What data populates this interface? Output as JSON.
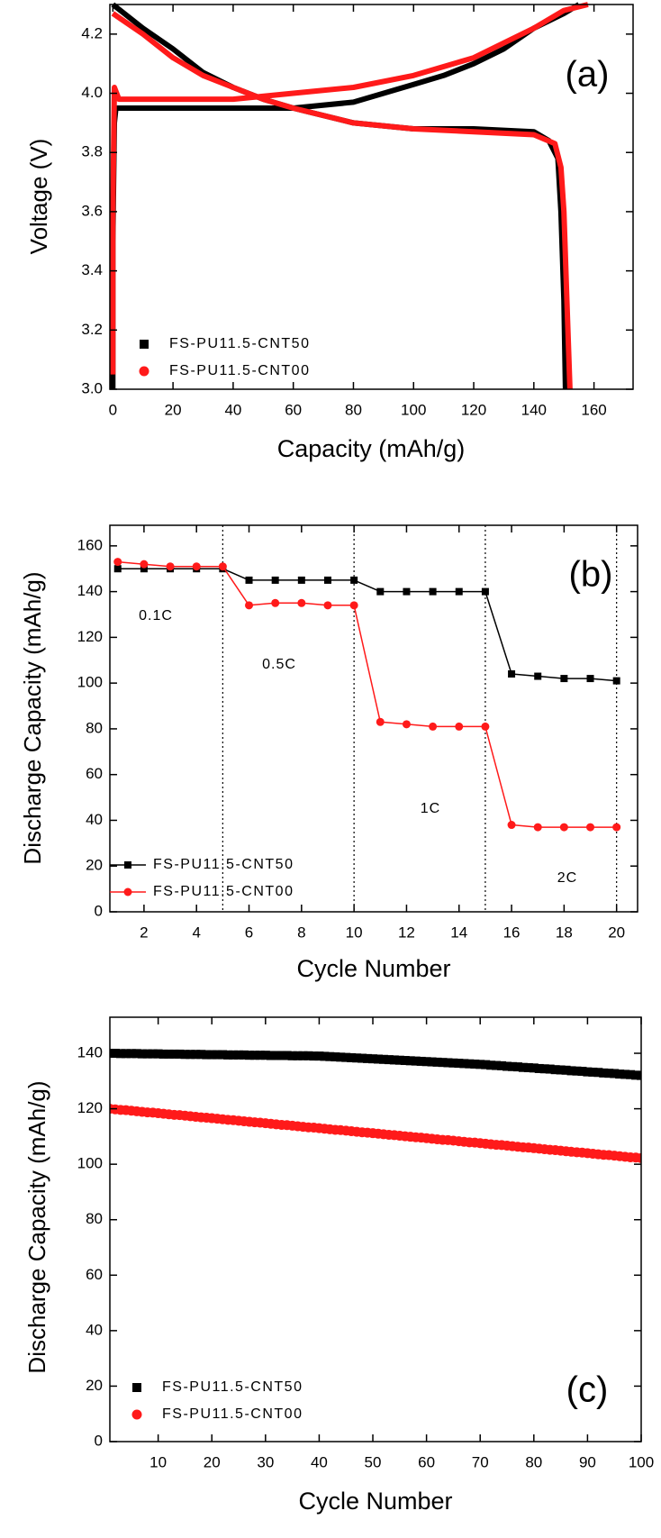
{
  "chart_data": [
    {
      "type": "line",
      "xlabel": "Capacity (mAh/g)",
      "ylabel": "Voltage (V)",
      "tag": "(a)",
      "xlim": [
        -1,
        173
      ],
      "xticks": [
        0,
        20,
        40,
        60,
        80,
        100,
        120,
        140,
        160
      ],
      "ylim": [
        3.0,
        4.3
      ],
      "yticks": [
        {
          "value": 3.0,
          "label": "3.0"
        },
        3.2,
        3.4,
        3.6,
        3.8,
        {
          "value": 4.0,
          "label": "4.0"
        },
        4.2
      ],
      "legend": "lower left",
      "markers": false,
      "series": [
        {
          "name": "FS-PU11.5-CNT50",
          "color": "#000000",
          "marker": "square",
          "x": [
            0,
            0,
            0.5,
            1,
            20,
            40,
            60,
            80,
            100,
            110,
            120,
            130,
            140,
            150,
            155,
            null,
            0,
            10,
            20,
            30,
            40,
            50,
            60,
            80,
            100,
            120,
            140,
            145,
            148,
            149,
            150,
            150.5
          ],
          "values": [
            3.0,
            3.5,
            3.9,
            3.95,
            3.95,
            3.95,
            3.95,
            3.97,
            4.03,
            4.06,
            4.1,
            4.15,
            4.22,
            4.27,
            4.3,
            null,
            4.3,
            4.22,
            4.15,
            4.07,
            4.02,
            3.98,
            3.95,
            3.9,
            3.88,
            3.88,
            3.87,
            3.84,
            3.78,
            3.6,
            3.3,
            3.0
          ]
        },
        {
          "name": "FS-PU11.5-CNT00",
          "color": "#ff1a1a",
          "marker": "circle",
          "x": [
            0,
            0,
            0.5,
            2,
            20,
            40,
            60,
            80,
            100,
            120,
            130,
            140,
            150,
            158,
            null,
            0,
            10,
            20,
            30,
            40,
            50,
            60,
            80,
            100,
            120,
            140,
            147,
            149,
            150,
            151,
            152
          ],
          "values": [
            3.05,
            3.6,
            4.02,
            3.98,
            3.98,
            3.98,
            4.0,
            4.02,
            4.06,
            4.12,
            4.17,
            4.22,
            4.28,
            4.3,
            null,
            4.27,
            4.2,
            4.12,
            4.06,
            4.02,
            3.98,
            3.95,
            3.9,
            3.88,
            3.87,
            3.86,
            3.83,
            3.75,
            3.6,
            3.3,
            3.0
          ]
        }
      ]
    },
    {
      "type": "line",
      "xlabel": "Cycle Number",
      "ylabel": "Discharge Capacity (mAh/g)",
      "tag": "(b)",
      "xlim": [
        0.7,
        20.8
      ],
      "xticks": [
        2,
        4,
        6,
        8,
        10,
        12,
        14,
        16,
        18,
        20
      ],
      "ylim": [
        0,
        169
      ],
      "yticks": [
        0,
        20,
        40,
        60,
        80,
        100,
        120,
        140,
        160
      ],
      "legend": "lower left",
      "markers": true,
      "vlines": [
        5,
        10,
        15,
        20
      ],
      "annotations": [
        "0.1C",
        "0.5C",
        "1C",
        "2C"
      ],
      "series": [
        {
          "name": "FS-PU11.5-CNT50",
          "color": "#000000",
          "marker": "square",
          "x": [
            1,
            2,
            3,
            4,
            5,
            6,
            7,
            8,
            9,
            10,
            11,
            12,
            13,
            14,
            15,
            16,
            17,
            18,
            19,
            20
          ],
          "values": [
            150,
            150,
            150,
            150,
            150,
            145,
            145,
            145,
            145,
            145,
            140,
            140,
            140,
            140,
            140,
            104,
            103,
            102,
            102,
            101
          ]
        },
        {
          "name": "FS-PU11.5-CNT00",
          "color": "#ff1a1a",
          "marker": "circle",
          "x": [
            1,
            2,
            3,
            4,
            5,
            6,
            7,
            8,
            9,
            10,
            11,
            12,
            13,
            14,
            15,
            16,
            17,
            18,
            19,
            20
          ],
          "values": [
            153,
            152,
            151,
            151,
            151,
            134,
            135,
            135,
            134,
            134,
            83,
            82,
            81,
            81,
            81,
            38,
            37,
            37,
            37,
            37
          ]
        }
      ]
    },
    {
      "type": "scatter",
      "xlabel": "Cycle Number",
      "ylabel": "Discharge Capacity (mAh/g)",
      "tag": "(c)",
      "xlim": [
        1,
        100
      ],
      "xticks": [
        10,
        20,
        30,
        40,
        50,
        60,
        70,
        80,
        90,
        100
      ],
      "ylim": [
        0,
        153
      ],
      "yticks": [
        0,
        20,
        40,
        60,
        80,
        100,
        120,
        140
      ],
      "legend": "lower left",
      "series": [
        {
          "name": "FS-PU11.5-CNT50",
          "color": "#000000",
          "marker": "square",
          "x": [
            1,
            2,
            3,
            4,
            5,
            6,
            7,
            8,
            9,
            10,
            11,
            12,
            13,
            14,
            15,
            16,
            17,
            18,
            19,
            20,
            21,
            22,
            23,
            24,
            25,
            26,
            27,
            28,
            29,
            30,
            31,
            32,
            33,
            34,
            35,
            36,
            37,
            38,
            39,
            40,
            41,
            42,
            43,
            44,
            45,
            46,
            47,
            48,
            49,
            50,
            51,
            52,
            53,
            54,
            55,
            56,
            57,
            58,
            59,
            60,
            61,
            62,
            63,
            64,
            65,
            66,
            67,
            68,
            69,
            70,
            71,
            72,
            73,
            74,
            75,
            76,
            77,
            78,
            79,
            80,
            81,
            82,
            83,
            84,
            85,
            86,
            87,
            88,
            89,
            90,
            91,
            92,
            93,
            94,
            95,
            96,
            97,
            98,
            99,
            100
          ],
          "values": [
            140.0,
            140.0,
            139.9,
            139.9,
            139.9,
            139.9,
            139.8,
            139.8,
            139.8,
            139.8,
            139.7,
            139.7,
            139.7,
            139.7,
            139.6,
            139.6,
            139.6,
            139.6,
            139.5,
            139.5,
            139.5,
            139.5,
            139.4,
            139.4,
            139.4,
            139.4,
            139.3,
            139.3,
            139.3,
            139.3,
            139.2,
            139.2,
            139.2,
            139.2,
            139.1,
            139.1,
            139.1,
            139.1,
            139.0,
            139.0,
            138.9,
            138.8,
            138.7,
            138.6,
            138.5,
            138.4,
            138.3,
            138.2,
            138.1,
            138.0,
            137.9,
            137.8,
            137.7,
            137.6,
            137.5,
            137.4,
            137.3,
            137.2,
            137.1,
            137.0,
            136.9,
            136.8,
            136.7,
            136.6,
            136.5,
            136.4,
            136.3,
            136.2,
            136.1,
            136.0,
            135.9,
            135.7,
            135.6,
            135.5,
            135.3,
            135.2,
            135.1,
            134.9,
            134.8,
            134.7,
            134.5,
            134.4,
            134.3,
            134.1,
            134.0,
            133.9,
            133.7,
            133.6,
            133.5,
            133.3,
            133.2,
            133.1,
            132.9,
            132.8,
            132.7,
            132.5,
            132.4,
            132.3,
            132.1,
            132.0
          ]
        },
        {
          "name": "FS-PU11.5-CNT00",
          "color": "#ff1a1a",
          "marker": "circle",
          "x": [
            1,
            2,
            3,
            4,
            5,
            6,
            7,
            8,
            9,
            10,
            11,
            12,
            13,
            14,
            15,
            16,
            17,
            18,
            19,
            20,
            21,
            22,
            23,
            24,
            25,
            26,
            27,
            28,
            29,
            30,
            31,
            32,
            33,
            34,
            35,
            36,
            37,
            38,
            39,
            40,
            41,
            42,
            43,
            44,
            45,
            46,
            47,
            48,
            49,
            50,
            51,
            52,
            53,
            54,
            55,
            56,
            57,
            58,
            59,
            60,
            61,
            62,
            63,
            64,
            65,
            66,
            67,
            68,
            69,
            70,
            71,
            72,
            73,
            74,
            75,
            76,
            77,
            78,
            79,
            80,
            81,
            82,
            83,
            84,
            85,
            86,
            87,
            88,
            89,
            90,
            91,
            92,
            93,
            94,
            95,
            96,
            97,
            98,
            99,
            100
          ],
          "values": [
            120.0,
            119.8,
            119.6,
            119.5,
            119.3,
            119.1,
            118.9,
            118.7,
            118.6,
            118.4,
            118.2,
            118.0,
            117.8,
            117.7,
            117.5,
            117.3,
            117.1,
            116.9,
            116.8,
            116.6,
            116.4,
            116.2,
            116.0,
            115.9,
            115.7,
            115.5,
            115.3,
            115.1,
            115.0,
            114.8,
            114.6,
            114.4,
            114.2,
            114.1,
            113.9,
            113.7,
            113.5,
            113.3,
            113.2,
            113.0,
            112.8,
            112.6,
            112.4,
            112.3,
            112.1,
            111.9,
            111.7,
            111.5,
            111.4,
            111.2,
            111.0,
            110.8,
            110.6,
            110.5,
            110.3,
            110.1,
            109.9,
            109.7,
            109.6,
            109.4,
            109.2,
            109.0,
            108.8,
            108.7,
            108.5,
            108.3,
            108.1,
            107.9,
            107.8,
            107.6,
            107.4,
            107.2,
            107.0,
            106.9,
            106.7,
            106.5,
            106.3,
            106.1,
            106.0,
            105.8,
            105.6,
            105.4,
            105.2,
            105.1,
            104.9,
            104.7,
            104.5,
            104.3,
            104.2,
            104.0,
            103.8,
            103.6,
            103.4,
            103.3,
            103.1,
            102.9,
            102.7,
            102.5,
            102.4,
            102.2
          ]
        }
      ]
    }
  ]
}
